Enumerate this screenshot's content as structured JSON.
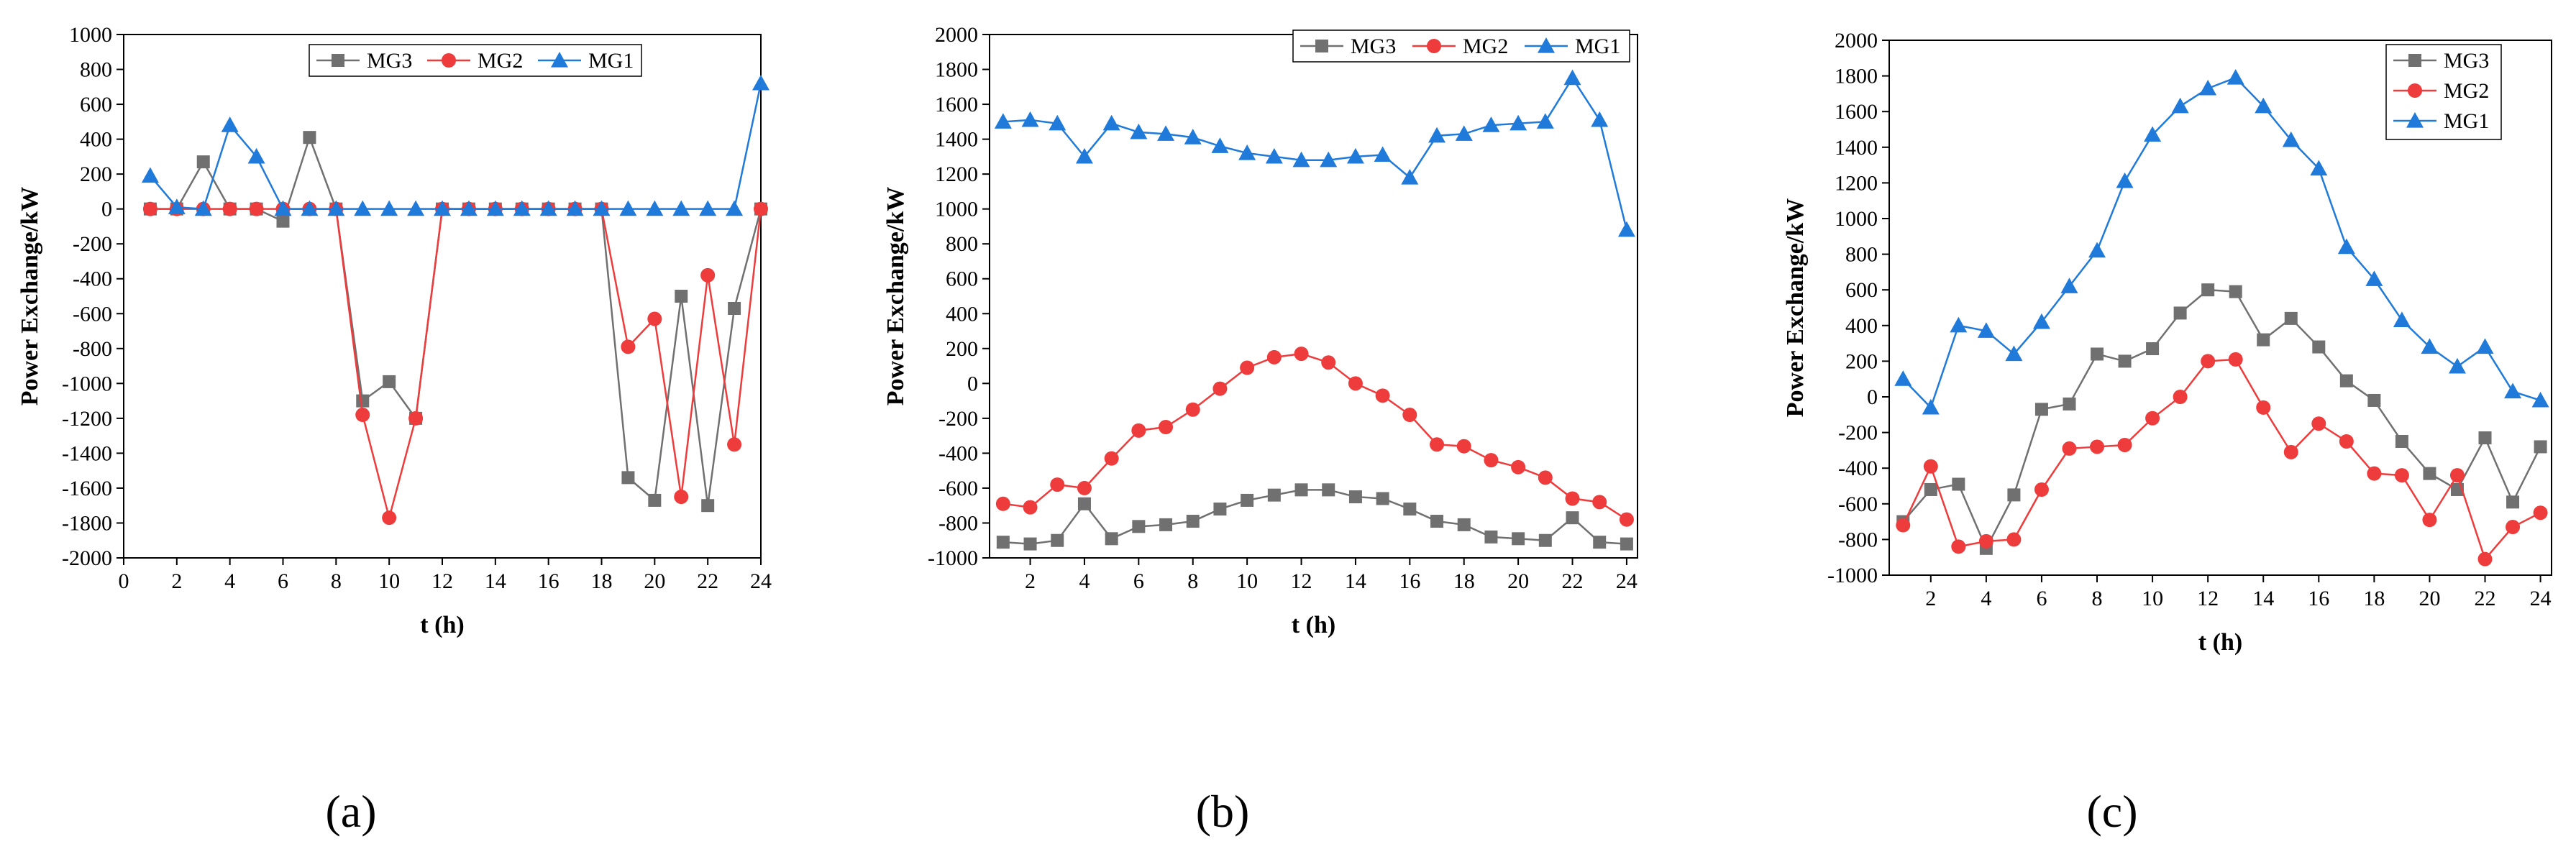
{
  "figure": {
    "panels": [
      {
        "label": "(a)"
      },
      {
        "label": "(b)"
      },
      {
        "label": "(c)"
      }
    ]
  },
  "chart_data": [
    {
      "type": "line",
      "panel": "(a)",
      "xlabel": "t (h)",
      "ylabel": "Power Exchange/kW",
      "xlim": [
        0,
        24
      ],
      "ylim": [
        -2000,
        1000
      ],
      "xticks": [
        0,
        2,
        4,
        6,
        8,
        10,
        12,
        14,
        16,
        18,
        20,
        22,
        24
      ],
      "yticks": [
        -2000,
        -1800,
        -1600,
        -1400,
        -1200,
        -1000,
        -800,
        -600,
        -400,
        -200,
        0,
        200,
        400,
        600,
        800,
        1000
      ],
      "grid": false,
      "legend_position": "top-center",
      "legend_layout": "horizontal",
      "x": [
        1,
        2,
        3,
        4,
        5,
        6,
        7,
        8,
        9,
        10,
        11,
        12,
        13,
        14,
        15,
        16,
        17,
        18,
        19,
        20,
        21,
        22,
        23,
        24
      ],
      "series": [
        {
          "name": "MG3",
          "color": "#707070",
          "marker": "square",
          "values": [
            0,
            0,
            270,
            0,
            0,
            -70,
            410,
            0,
            -1100,
            -990,
            -1200,
            0,
            0,
            0,
            0,
            0,
            0,
            0,
            -1540,
            -1670,
            -500,
            -1700,
            -570,
            0
          ]
        },
        {
          "name": "MG2",
          "color": "#ee3b3b",
          "marker": "circle",
          "values": [
            0,
            0,
            0,
            0,
            0,
            0,
            0,
            0,
            -1180,
            -1770,
            -1200,
            0,
            0,
            0,
            0,
            0,
            0,
            0,
            -790,
            -630,
            -1650,
            -380,
            -1350,
            0
          ]
        },
        {
          "name": "MG1",
          "color": "#1f7ad9",
          "marker": "triangle",
          "values": [
            190,
            10,
            0,
            480,
            300,
            0,
            0,
            0,
            0,
            0,
            0,
            0,
            0,
            0,
            0,
            0,
            0,
            0,
            0,
            0,
            0,
            0,
            0,
            720
          ]
        }
      ]
    },
    {
      "type": "line",
      "panel": "(b)",
      "xlabel": "t (h)",
      "ylabel": "Power Exchange/kW",
      "xlim": [
        0.5,
        24.4
      ],
      "ylim": [
        -1000,
        2000
      ],
      "xticks": [
        2,
        4,
        6,
        8,
        10,
        12,
        14,
        16,
        18,
        20,
        22,
        24
      ],
      "yticks": [
        -1000,
        -800,
        -600,
        -400,
        -200,
        0,
        200,
        400,
        600,
        800,
        1000,
        1200,
        1400,
        1600,
        1800,
        2000
      ],
      "grid": false,
      "legend_position": "top-right",
      "legend_layout": "horizontal",
      "x": [
        1,
        2,
        3,
        4,
        5,
        6,
        7,
        8,
        9,
        10,
        11,
        12,
        13,
        14,
        15,
        16,
        17,
        18,
        19,
        20,
        21,
        22,
        23,
        24
      ],
      "series": [
        {
          "name": "MG3",
          "color": "#707070",
          "marker": "square",
          "values": [
            -910,
            -920,
            -900,
            -690,
            -890,
            -820,
            -810,
            -790,
            -720,
            -670,
            -640,
            -610,
            -610,
            -650,
            -660,
            -720,
            -790,
            -810,
            -880,
            -890,
            -900,
            -770,
            -910,
            -920
          ]
        },
        {
          "name": "MG2",
          "color": "#ee3b3b",
          "marker": "circle",
          "values": [
            -690,
            -710,
            -580,
            -600,
            -430,
            -270,
            -250,
            -150,
            -30,
            90,
            150,
            170,
            120,
            0,
            -70,
            -180,
            -350,
            -360,
            -440,
            -480,
            -540,
            -660,
            -680,
            -780
          ]
        },
        {
          "name": "MG1",
          "color": "#1f7ad9",
          "marker": "triangle",
          "values": [
            1500,
            1510,
            1490,
            1300,
            1490,
            1440,
            1430,
            1410,
            1360,
            1320,
            1300,
            1280,
            1280,
            1300,
            1310,
            1180,
            1420,
            1430,
            1480,
            1490,
            1500,
            1750,
            1510,
            880
          ]
        }
      ]
    },
    {
      "type": "line",
      "panel": "(c)",
      "xlabel": "t (h)",
      "ylabel": "Power Exchange/kW",
      "xlim": [
        0.5,
        24.4
      ],
      "ylim": [
        -1000,
        2000
      ],
      "xticks": [
        2,
        4,
        6,
        8,
        10,
        12,
        14,
        16,
        18,
        20,
        22,
        24
      ],
      "yticks": [
        -1000,
        -800,
        -600,
        -400,
        -200,
        0,
        200,
        400,
        600,
        800,
        1000,
        1200,
        1400,
        1600,
        1800,
        2000
      ],
      "grid": false,
      "legend_position": "top-right",
      "legend_layout": "vertical",
      "x": [
        1,
        2,
        3,
        4,
        5,
        6,
        7,
        8,
        9,
        10,
        11,
        12,
        13,
        14,
        15,
        16,
        17,
        18,
        19,
        20,
        21,
        22,
        23,
        24
      ],
      "series": [
        {
          "name": "MG3",
          "color": "#707070",
          "marker": "square",
          "values": [
            -700,
            -520,
            -490,
            -850,
            -550,
            -70,
            -40,
            240,
            200,
            270,
            470,
            600,
            590,
            320,
            440,
            280,
            90,
            -20,
            -250,
            -430,
            -520,
            -230,
            -590,
            -280
          ]
        },
        {
          "name": "MG2",
          "color": "#ee3b3b",
          "marker": "circle",
          "values": [
            -720,
            -390,
            -840,
            -810,
            -800,
            -520,
            -290,
            -280,
            -270,
            -120,
            0,
            200,
            210,
            -60,
            -310,
            -150,
            -250,
            -430,
            -440,
            -690,
            -440,
            -910,
            -730,
            -650
          ]
        },
        {
          "name": "MG1",
          "color": "#1f7ad9",
          "marker": "triangle",
          "values": [
            100,
            -60,
            400,
            370,
            240,
            420,
            620,
            820,
            1210,
            1470,
            1630,
            1730,
            1790,
            1630,
            1440,
            1280,
            840,
            660,
            430,
            280,
            170,
            280,
            30,
            -20
          ]
        }
      ]
    }
  ]
}
